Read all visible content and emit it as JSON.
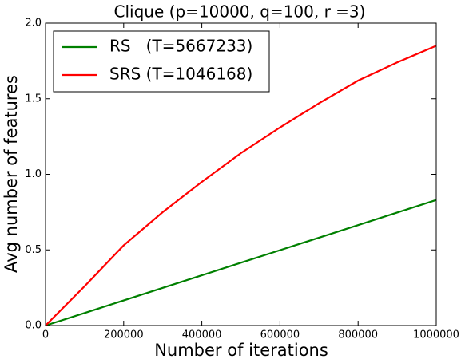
{
  "chart_data": {
    "type": "line",
    "title": "Clique (p=10000, q=100, r =3)",
    "x_label": "Number of iterations",
    "y_label": "Avg number of features",
    "x": [
      0,
      100000,
      200000,
      300000,
      400000,
      500000,
      600000,
      700000,
      800000,
      900000,
      1000000
    ],
    "series": [
      {
        "name": "RS   (T=5667233)",
        "color": "#008000",
        "values": [
          0,
          0.083,
          0.166,
          0.249,
          0.332,
          0.415,
          0.498,
          0.581,
          0.664,
          0.747,
          0.83
        ]
      },
      {
        "name": "SRS (T=1046168)",
        "color": "#ff0000",
        "values": [
          0,
          0.26,
          0.53,
          0.75,
          0.95,
          1.14,
          1.31,
          1.47,
          1.62,
          1.74,
          1.85
        ]
      }
    ],
    "xlim": [
      0,
      1000000
    ],
    "xticks": [
      0,
      200000,
      400000,
      600000,
      800000,
      1000000
    ],
    "ylim": [
      0,
      2
    ],
    "yticks": [
      {
        "value": 0,
        "label": "0.0"
      },
      {
        "value": 0.5,
        "label": "0.5"
      },
      {
        "value": 1,
        "label": "1.0"
      },
      {
        "value": 1.5,
        "label": "1.5"
      },
      {
        "value": 2,
        "label": "2.0"
      }
    ],
    "grid": false,
    "legend_position": "upper-left"
  }
}
